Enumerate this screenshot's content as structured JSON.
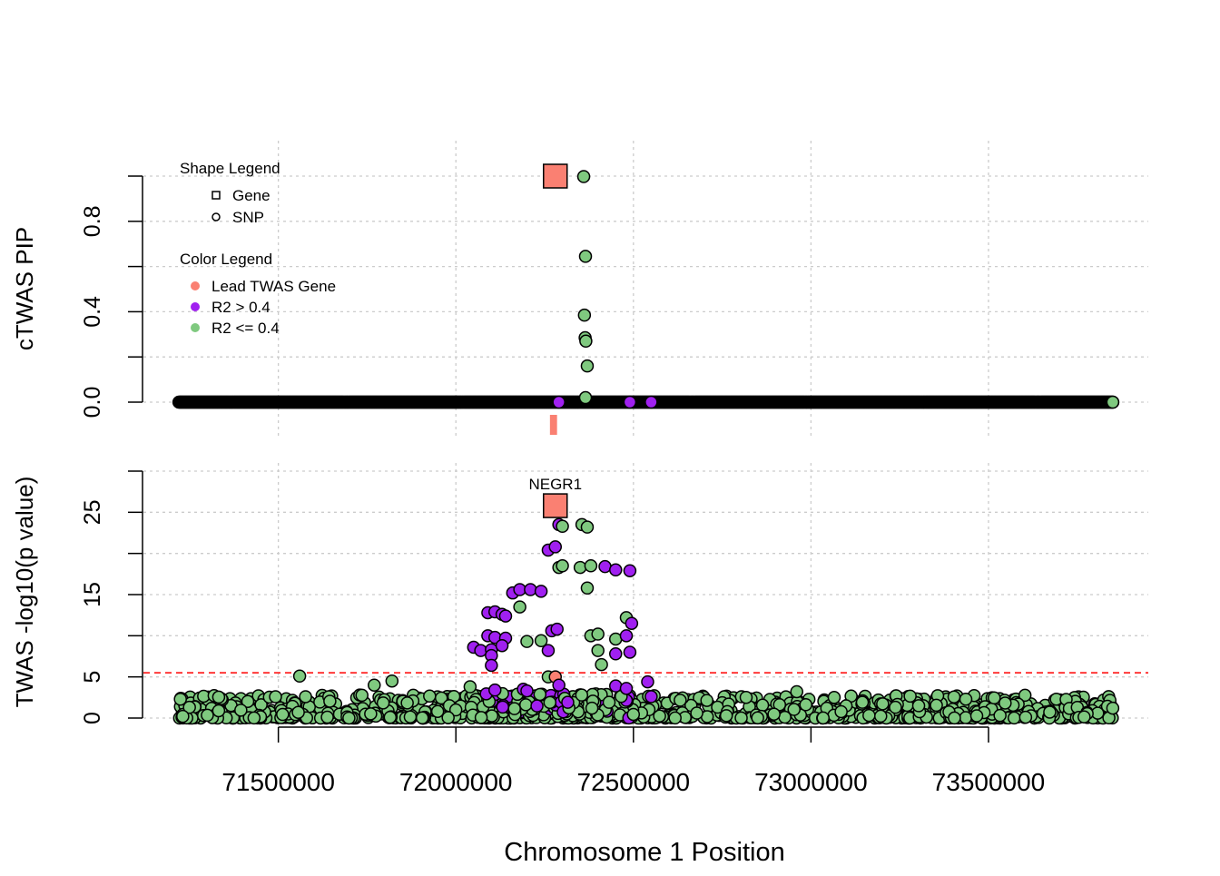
{
  "chart_data": [
    {
      "type": "scatter",
      "panel": "top",
      "ylabel": "cTWAS PIP",
      "ylim": [
        0,
        1
      ],
      "yticks": [
        0.0,
        0.2,
        0.4,
        0.6,
        0.8,
        1.0
      ],
      "ytick_labels": [
        "0.0",
        "",
        "0.4",
        "",
        "0.8",
        ""
      ],
      "xlim": [
        71120000,
        73950000
      ],
      "grid": true,
      "legend_position": "top-left",
      "shape_legend_title": "Shape Legend",
      "shape_legend": [
        {
          "shape": "square",
          "label": "Gene"
        },
        {
          "shape": "circle",
          "label": "SNP"
        }
      ],
      "color_legend_title": "Color Legend",
      "color_legend": [
        {
          "color": "#FA8072",
          "label": "Lead TWAS Gene"
        },
        {
          "color": "#A020F0",
          "label": "R2 > 0.4"
        },
        {
          "color": "#7FC97F",
          "label": "R2 <= 0.4"
        }
      ],
      "genes": [
        {
          "name": "NEGR1",
          "x": 72280000,
          "y": 1.0,
          "color": "#FA8072"
        }
      ],
      "gene_track": [
        {
          "name": "NEGR1",
          "start": 72270000,
          "end": 72290000,
          "color": "#FA8072"
        }
      ],
      "snps_highlight": [
        {
          "x": 72360000,
          "y": 0.998,
          "color": "#7FC97F"
        },
        {
          "x": 72365000,
          "y": 0.645,
          "color": "#7FC97F"
        },
        {
          "x": 72362000,
          "y": 0.385,
          "color": "#7FC97F"
        },
        {
          "x": 72364000,
          "y": 0.285,
          "color": "#7FC97F"
        },
        {
          "x": 72366000,
          "y": 0.27,
          "color": "#7FC97F"
        },
        {
          "x": 72370000,
          "y": 0.16,
          "color": "#7FC97F"
        },
        {
          "x": 72365000,
          "y": 0.02,
          "color": "#7FC97F"
        },
        {
          "x": 72290000,
          "y": 0.0,
          "color": "#A020F0"
        },
        {
          "x": 72490000,
          "y": 0.0,
          "color": "#A020F0"
        },
        {
          "x": 72550000,
          "y": 0.0,
          "color": "#A020F0"
        },
        {
          "x": 73850000,
          "y": 0.0,
          "color": "#7FC97F"
        }
      ],
      "snp_x_range": [
        71220000,
        73850000
      ],
      "snp_count_estimate": 1100
    },
    {
      "type": "scatter",
      "panel": "bottom",
      "ylabel": "TWAS -log10(p value)",
      "xlabel": "Chromosome 1 Position",
      "ylim": [
        0,
        30
      ],
      "yticks": [
        0,
        5,
        10,
        15,
        20,
        25,
        30
      ],
      "ytick_labels": [
        "0",
        "5",
        "",
        "15",
        "",
        "25",
        ""
      ],
      "xticks": [
        71500000,
        72000000,
        72500000,
        73000000,
        73500000
      ],
      "xtick_labels": [
        "71500000",
        "72000000",
        "72500000",
        "73000000",
        "73500000"
      ],
      "xlim": [
        71120000,
        73950000
      ],
      "threshold": 5.5,
      "threshold_color": "#FF0000",
      "grid": true,
      "genes": [
        {
          "name": "NEGR1",
          "x": 72280000,
          "y": 25.8,
          "color": "#FA8072",
          "label": "NEGR1"
        }
      ],
      "snps_highlight": [
        {
          "x": 72290000,
          "y": 23.5,
          "color": "#A020F0"
        },
        {
          "x": 72300000,
          "y": 23.3,
          "color": "#7FC97F"
        },
        {
          "x": 72355000,
          "y": 23.5,
          "color": "#7FC97F"
        },
        {
          "x": 72370000,
          "y": 23.2,
          "color": "#7FC97F"
        },
        {
          "x": 72260000,
          "y": 20.4,
          "color": "#A020F0"
        },
        {
          "x": 72280000,
          "y": 20.8,
          "color": "#A020F0"
        },
        {
          "x": 72290000,
          "y": 18.3,
          "color": "#7FC97F"
        },
        {
          "x": 72300000,
          "y": 18.5,
          "color": "#7FC97F"
        },
        {
          "x": 72350000,
          "y": 18.3,
          "color": "#7FC97F"
        },
        {
          "x": 72380000,
          "y": 18.5,
          "color": "#7FC97F"
        },
        {
          "x": 72420000,
          "y": 18.4,
          "color": "#A020F0"
        },
        {
          "x": 72450000,
          "y": 18.0,
          "color": "#A020F0"
        },
        {
          "x": 72490000,
          "y": 17.9,
          "color": "#A020F0"
        },
        {
          "x": 72370000,
          "y": 15.8,
          "color": "#7FC97F"
        },
        {
          "x": 72160000,
          "y": 15.2,
          "color": "#A020F0"
        },
        {
          "x": 72180000,
          "y": 15.6,
          "color": "#A020F0"
        },
        {
          "x": 72210000,
          "y": 15.6,
          "color": "#A020F0"
        },
        {
          "x": 72240000,
          "y": 15.4,
          "color": "#A020F0"
        },
        {
          "x": 72180000,
          "y": 13.5,
          "color": "#7FC97F"
        },
        {
          "x": 72090000,
          "y": 12.8,
          "color": "#A020F0"
        },
        {
          "x": 72110000,
          "y": 12.9,
          "color": "#A020F0"
        },
        {
          "x": 72130000,
          "y": 12.6,
          "color": "#A020F0"
        },
        {
          "x": 72140000,
          "y": 12.4,
          "color": "#A020F0"
        },
        {
          "x": 72480000,
          "y": 12.2,
          "color": "#7FC97F"
        },
        {
          "x": 72495000,
          "y": 11.5,
          "color": "#A020F0"
        },
        {
          "x": 72270000,
          "y": 10.6,
          "color": "#A020F0"
        },
        {
          "x": 72285000,
          "y": 10.8,
          "color": "#A020F0"
        },
        {
          "x": 72090000,
          "y": 10.0,
          "color": "#A020F0"
        },
        {
          "x": 72110000,
          "y": 9.8,
          "color": "#A020F0"
        },
        {
          "x": 72140000,
          "y": 9.7,
          "color": "#A020F0"
        },
        {
          "x": 72200000,
          "y": 9.3,
          "color": "#7FC97F"
        },
        {
          "x": 72240000,
          "y": 9.4,
          "color": "#7FC97F"
        },
        {
          "x": 72380000,
          "y": 10.0,
          "color": "#7FC97F"
        },
        {
          "x": 72400000,
          "y": 10.2,
          "color": "#7FC97F"
        },
        {
          "x": 72450000,
          "y": 9.6,
          "color": "#7FC97F"
        },
        {
          "x": 72480000,
          "y": 10.0,
          "color": "#A020F0"
        },
        {
          "x": 72050000,
          "y": 8.6,
          "color": "#A020F0"
        },
        {
          "x": 72070000,
          "y": 8.2,
          "color": "#A020F0"
        },
        {
          "x": 72100000,
          "y": 8.3,
          "color": "#A020F0"
        },
        {
          "x": 72130000,
          "y": 8.8,
          "color": "#A020F0"
        },
        {
          "x": 72260000,
          "y": 8.2,
          "color": "#A020F0"
        },
        {
          "x": 72400000,
          "y": 8.2,
          "color": "#7FC97F"
        },
        {
          "x": 72450000,
          "y": 7.8,
          "color": "#A020F0"
        },
        {
          "x": 72490000,
          "y": 8.0,
          "color": "#A020F0"
        },
        {
          "x": 72100000,
          "y": 7.6,
          "color": "#A020F0"
        },
        {
          "x": 72100000,
          "y": 6.4,
          "color": "#A020F0"
        },
        {
          "x": 72410000,
          "y": 6.5,
          "color": "#7FC97F"
        },
        {
          "x": 71560000,
          "y": 5.1,
          "color": "#7FC97F"
        },
        {
          "x": 72260000,
          "y": 5.0,
          "color": "#7FC97F"
        },
        {
          "x": 72280000,
          "y": 5.0,
          "color": "#FA8072"
        },
        {
          "x": 71820000,
          "y": 4.5,
          "color": "#7FC97F"
        },
        {
          "x": 71770000,
          "y": 4.0,
          "color": "#7FC97F"
        },
        {
          "x": 72040000,
          "y": 3.8,
          "color": "#7FC97F"
        },
        {
          "x": 72290000,
          "y": 4.0,
          "color": "#A020F0"
        },
        {
          "x": 72450000,
          "y": 3.9,
          "color": "#A020F0"
        },
        {
          "x": 72480000,
          "y": 3.6,
          "color": "#A020F0"
        },
        {
          "x": 72540000,
          "y": 4.4,
          "color": "#A020F0"
        },
        {
          "x": 72110000,
          "y": 3.4,
          "color": "#A020F0"
        },
        {
          "x": 72190000,
          "y": 3.5,
          "color": "#A020F0"
        },
        {
          "x": 72200000,
          "y": 3.3,
          "color": "#A020F0"
        },
        {
          "x": 72550000,
          "y": 2.6,
          "color": "#A020F0"
        },
        {
          "x": 72960000,
          "y": 3.2,
          "color": "#7FC97F"
        },
        {
          "x": 73850000,
          "y": 1.2,
          "color": "#7FC97F"
        }
      ],
      "snp_x_range": [
        71220000,
        73850000
      ],
      "snp_count_estimate": 1100
    }
  ]
}
